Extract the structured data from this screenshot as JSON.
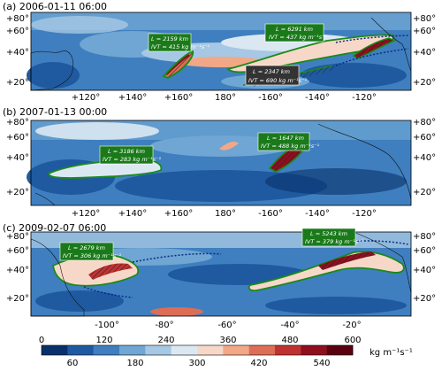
{
  "panels": [
    {
      "title": "(a) 2006-01-11 06:00",
      "x_ticks": [
        "+120°",
        "+140°",
        "+160°",
        "180°",
        "-160°",
        "-140°",
        "-120°"
      ],
      "y_ticks": [
        "+80°",
        "+60°",
        "+40°",
        "+20°"
      ],
      "labels": [
        {
          "L": "L = 2159 km",
          "IVT": "IVT = 415 kg m⁻¹s⁻¹",
          "style": "green"
        },
        {
          "L": "L = 6291 km",
          "IVT": "IVT = 437 kg m⁻¹s⁻¹",
          "style": "green"
        },
        {
          "L": "L = 2347 km",
          "IVT": "IVT = 690 kg m⁻¹s⁻¹",
          "style": "dark"
        }
      ]
    },
    {
      "title": "(b) 2007-01-13 00:00",
      "x_ticks": [
        "+120°",
        "+140°",
        "+160°",
        "180°",
        "-160°",
        "-140°",
        "-120°"
      ],
      "y_ticks": [
        "+80°",
        "+60°",
        "+40°",
        "+20°"
      ],
      "labels": [
        {
          "L": "L = 3186 km",
          "IVT": "IVT = 283 kg m⁻¹s⁻¹",
          "style": "green"
        },
        {
          "L": "L = 1647 km",
          "IVT": "IVT = 488 kg m⁻¹s⁻¹",
          "style": "green"
        }
      ]
    },
    {
      "title": "(c) 2009-02-07 06:00",
      "x_ticks": [
        "-100°",
        "-80°",
        "-60°",
        "-40°",
        "-20°"
      ],
      "y_ticks": [
        "+80°",
        "+60°",
        "+40°",
        "+20°"
      ],
      "labels": [
        {
          "L": "L = 2679 km",
          "IVT": "IVT = 306 kg m⁻¹s⁻¹",
          "style": "green"
        },
        {
          "L": "L = 5243 km",
          "IVT": "IVT = 379 kg m⁻¹s⁻¹",
          "style": "green"
        }
      ]
    }
  ],
  "colorbar": {
    "unit": "kg m⁻¹s⁻¹",
    "ticks_top": [
      "0",
      "120",
      "240",
      "360",
      "480",
      "600"
    ],
    "ticks_bottom": [
      "60",
      "180",
      "300",
      "420",
      "540"
    ],
    "colors": [
      "#08306b",
      "#1f5aa0",
      "#3f7fbf",
      "#6fa6d3",
      "#a6c8e4",
      "#dbe8f2",
      "#f7d8c8",
      "#f2a887",
      "#de6d55",
      "#c03232",
      "#8f0f1f",
      "#5a0010"
    ]
  },
  "chart_data": [
    {
      "type": "heatmap",
      "title": "(a) 2006-01-11 06:00",
      "x_tick_labels": [
        "+120°",
        "+140°",
        "+160°",
        "180°",
        "-160°",
        "-140°",
        "-120°"
      ],
      "y_tick_labels": [
        "+20°",
        "+40°",
        "+60°",
        "+80°"
      ],
      "variable_unit": "kg m⁻¹s⁻¹",
      "color_range": [
        0,
        600
      ],
      "objects": [
        {
          "L_km": 2159,
          "IVT": 415
        },
        {
          "L_km": 6291,
          "IVT": 437
        },
        {
          "L_km": 2347,
          "IVT": 690
        }
      ]
    },
    {
      "type": "heatmap",
      "title": "(b) 2007-01-13 00:00",
      "x_tick_labels": [
        "+120°",
        "+140°",
        "+160°",
        "180°",
        "-160°",
        "-140°",
        "-120°"
      ],
      "y_tick_labels": [
        "+20°",
        "+40°",
        "+60°",
        "+80°"
      ],
      "variable_unit": "kg m⁻¹s⁻¹",
      "color_range": [
        0,
        600
      ],
      "objects": [
        {
          "L_km": 3186,
          "IVT": 283
        },
        {
          "L_km": 1647,
          "IVT": 488
        }
      ]
    },
    {
      "type": "heatmap",
      "title": "(c) 2009-02-07 06:00",
      "x_tick_labels": [
        "-100°",
        "-80°",
        "-60°",
        "-40°",
        "-20°"
      ],
      "y_tick_labels": [
        "+20°",
        "+40°",
        "+60°",
        "+80°"
      ],
      "variable_unit": "kg m⁻¹s⁻¹",
      "color_range": [
        0,
        600
      ],
      "objects": [
        {
          "L_km": 2679,
          "IVT": 306
        },
        {
          "L_km": 5243,
          "IVT": 379
        }
      ]
    }
  ]
}
